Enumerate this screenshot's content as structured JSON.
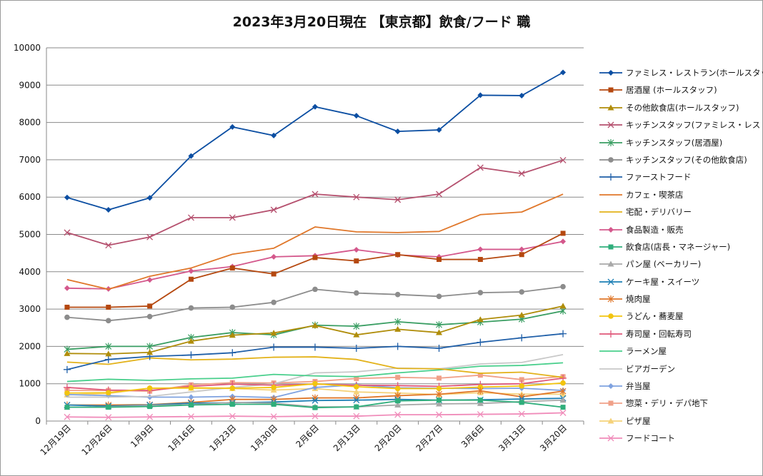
{
  "chart_data": {
    "type": "line",
    "title": "2023年3月20日現在 【東京都】飲食/フード 職",
    "xlabel": "",
    "ylabel": "",
    "ylim": [
      0,
      10000
    ],
    "yticks": [
      0,
      1000,
      2000,
      3000,
      4000,
      5000,
      6000,
      7000,
      8000,
      9000,
      10000
    ],
    "grid": true,
    "legend_position": "right",
    "categories": [
      "12月19日",
      "12月26日",
      "1月9日",
      "1月16日",
      "1月23日",
      "1月30日",
      "2月6日",
      "2月13日",
      "2月20日",
      "2月27日",
      "3月6日",
      "3月13日",
      "3月20日"
    ],
    "series": [
      {
        "name": "ファミレス・レストラン(ホールスタッフ)",
        "color": "#0b4ea2",
        "marker": "diamond",
        "values": [
          5990,
          5660,
          5980,
          7100,
          7880,
          7650,
          8420,
          8180,
          7760,
          7800,
          8730,
          8720,
          9340
        ]
      },
      {
        "name": "居酒屋 (ホールスタッフ)",
        "color": "#b5480f",
        "marker": "square",
        "values": [
          3050,
          3050,
          3080,
          3800,
          4100,
          3940,
          4380,
          4290,
          4460,
          4330,
          4330,
          4460,
          5030
        ]
      },
      {
        "name": "その他飲食店(ホールスタッフ)",
        "color": "#b08d0a",
        "marker": "triangle",
        "values": [
          1810,
          1800,
          1840,
          2140,
          2300,
          2360,
          2560,
          2310,
          2460,
          2370,
          2720,
          2840,
          3080
        ]
      },
      {
        "name": "キッチンスタッフ(ファミレス・レストラン)",
        "color": "#b5506e",
        "marker": "x",
        "values": [
          5050,
          4710,
          4930,
          5450,
          5450,
          5660,
          6080,
          6000,
          5930,
          6080,
          6790,
          6630,
          6990
        ]
      },
      {
        "name": "キッチンスタッフ(居酒屋)",
        "color": "#3a9e63",
        "marker": "star",
        "values": [
          1920,
          2000,
          2000,
          2240,
          2370,
          2310,
          2570,
          2540,
          2660,
          2580,
          2650,
          2730,
          2950
        ]
      },
      {
        "name": "キッチンスタッフ(その他飲食店)",
        "color": "#8c8c8c",
        "marker": "circle",
        "values": [
          2780,
          2690,
          2800,
          3030,
          3050,
          3180,
          3530,
          3430,
          3390,
          3340,
          3440,
          3460,
          3600
        ]
      },
      {
        "name": "ファーストフード",
        "color": "#1f5fa8",
        "marker": "plus",
        "values": [
          1380,
          1650,
          1730,
          1770,
          1830,
          1980,
          1980,
          1950,
          2000,
          1950,
          2110,
          2230,
          2340
        ]
      },
      {
        "name": "カフェ・喫茶店",
        "color": "#e0772a",
        "marker": "none",
        "values": [
          3790,
          3530,
          3880,
          4100,
          4470,
          4630,
          5200,
          5070,
          5050,
          5080,
          5530,
          5600,
          6080
        ]
      },
      {
        "name": "宅配・デリバリー",
        "color": "#e3b21a",
        "marker": "none",
        "values": [
          1580,
          1520,
          1690,
          1640,
          1660,
          1710,
          1720,
          1650,
          1410,
          1400,
          1280,
          1310,
          1170
        ]
      },
      {
        "name": "食品製造・販売",
        "color": "#d4588c",
        "marker": "diamond",
        "values": [
          3560,
          3540,
          3780,
          4020,
          4140,
          4400,
          4430,
          4590,
          4450,
          4400,
          4600,
          4600,
          4810
        ]
      },
      {
        "name": "飲食店(店長・マネージャー)",
        "color": "#2fae7b",
        "marker": "square",
        "values": [
          370,
          370,
          390,
          430,
          450,
          450,
          360,
          380,
          540,
          560,
          560,
          500,
          370
        ]
      },
      {
        "name": "パン屋 (ベーカリー)",
        "color": "#a8a8a8",
        "marker": "triangle",
        "values": [
          370,
          380,
          420,
          440,
          500,
          480,
          380,
          380,
          430,
          460,
          470,
          520,
          560
        ]
      },
      {
        "name": "ケーキ屋・スイーツ",
        "color": "#1c7fb5",
        "marker": "x",
        "values": [
          430,
          400,
          430,
          480,
          490,
          510,
          550,
          560,
          580,
          560,
          570,
          590,
          610
        ]
      },
      {
        "name": "焼肉屋",
        "color": "#e0772a",
        "marker": "star",
        "values": [
          430,
          430,
          440,
          500,
          580,
          580,
          620,
          620,
          680,
          720,
          810,
          650,
          800
        ]
      },
      {
        "name": "うどん・蕎麦屋",
        "color": "#f2c40f",
        "marker": "circle",
        "values": [
          750,
          760,
          880,
          890,
          880,
          900,
          1000,
          920,
          870,
          870,
          910,
          940,
          1020
        ]
      },
      {
        "name": "寿司屋・回転寿司",
        "color": "#e0587a",
        "marker": "plus",
        "values": [
          900,
          830,
          820,
          930,
          990,
          960,
          990,
          960,
          950,
          930,
          980,
          1000,
          1150
        ]
      },
      {
        "name": "ラーメン屋",
        "color": "#49cf8c",
        "marker": "none",
        "values": [
          1060,
          1120,
          1090,
          1130,
          1150,
          1250,
          1210,
          1190,
          1290,
          1370,
          1470,
          1490,
          1560
        ]
      },
      {
        "name": "ビアガーデン",
        "color": "#c8c8c8",
        "marker": "none",
        "values": [
          640,
          640,
          660,
          780,
          900,
          1000,
          1290,
          1320,
          1420,
          1400,
          1530,
          1570,
          1780
        ]
      },
      {
        "name": "弁当屋",
        "color": "#7fa2e0",
        "marker": "diamond",
        "values": [
          710,
          680,
          640,
          640,
          660,
          630,
          900,
          970,
          890,
          880,
          870,
          880,
          820
        ]
      },
      {
        "name": "惣菜・デリ・デパ地下",
        "color": "#f0a088",
        "marker": "square",
        "values": [
          820,
          820,
          800,
          970,
          1030,
          1020,
          1060,
          1140,
          1170,
          1150,
          1230,
          1110,
          1190
        ]
      },
      {
        "name": "ピザ屋",
        "color": "#f5d27a",
        "marker": "triangle",
        "values": [
          700,
          740,
          880,
          880,
          870,
          830,
          870,
          780,
          750,
          710,
          760,
          720,
          720
        ]
      },
      {
        "name": "フードコート",
        "color": "#f08cba",
        "marker": "x",
        "values": [
          110,
          100,
          110,
          120,
          130,
          120,
          130,
          130,
          170,
          170,
          180,
          190,
          220
        ]
      }
    ]
  }
}
